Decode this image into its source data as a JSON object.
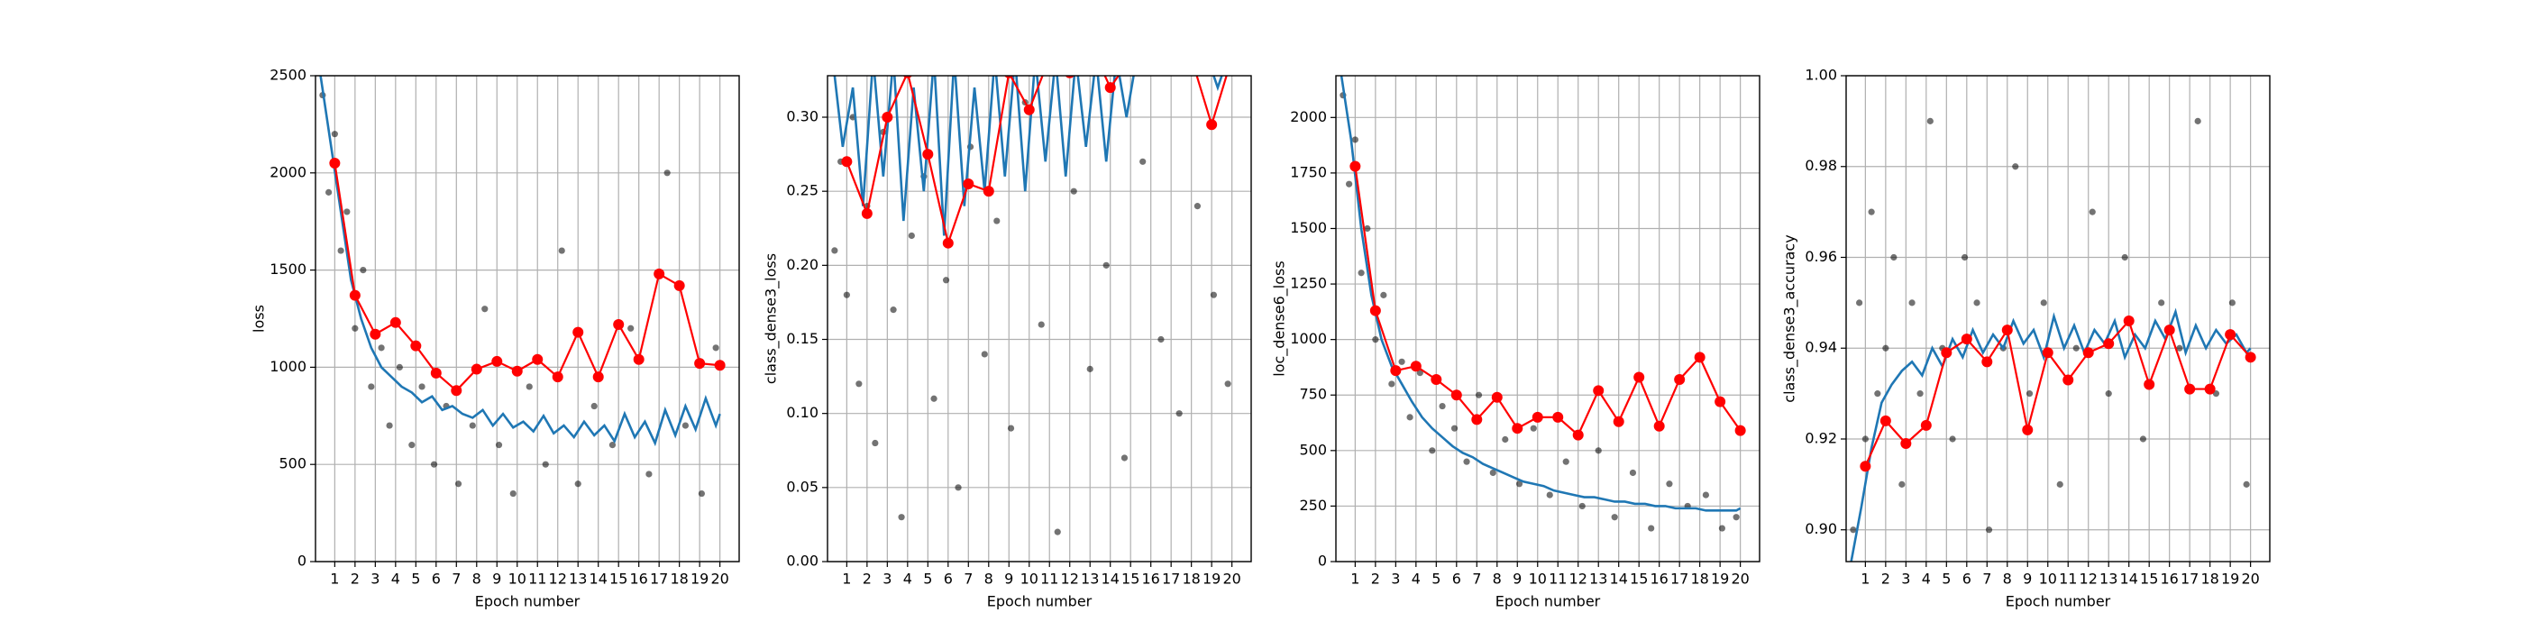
{
  "chart_data": [
    {
      "type": "combo",
      "ylabel": "loss",
      "xlabel": "Epoch number",
      "grid": true,
      "xlim": [
        0.05,
        20.95
      ],
      "xticks": [
        1,
        2,
        3,
        4,
        5,
        6,
        7,
        8,
        9,
        10,
        11,
        12,
        13,
        14,
        15,
        16,
        17,
        18,
        19,
        20
      ],
      "ylim": [
        0,
        2500
      ],
      "yticks": [
        0,
        500,
        1000,
        1500,
        2000,
        2500
      ],
      "series": [
        {
          "type": "scatter",
          "color": "#000000",
          "x": [
            0.4,
            0.7,
            1.0,
            1.3,
            1.6,
            2.0,
            2.4,
            2.8,
            3.3,
            3.7,
            4.2,
            4.8,
            5.3,
            5.9,
            6.5,
            7.1,
            7.8,
            8.4,
            9.1,
            9.8,
            10.6,
            11.4,
            12.2,
            13.0,
            13.8,
            14.7,
            15.6,
            16.5,
            17.4,
            18.3,
            19.1,
            19.8
          ],
          "values": [
            2400,
            1900,
            2200,
            1600,
            1800,
            1200,
            1500,
            900,
            1100,
            700,
            1000,
            600,
            900,
            500,
            800,
            400,
            700,
            1300,
            600,
            350,
            900,
            500,
            1600,
            400,
            800,
            600,
            1200,
            450,
            2000,
            700,
            350,
            1100
          ]
        },
        {
          "type": "line",
          "color": "#1f77b4",
          "x": [
            0.3,
            0.8,
            1.3,
            1.8,
            2.3,
            2.8,
            3.3,
            3.8,
            4.3,
            4.8,
            5.3,
            5.8,
            6.3,
            6.8,
            7.3,
            7.8,
            8.3,
            8.8,
            9.3,
            9.8,
            10.3,
            10.8,
            11.3,
            11.8,
            12.3,
            12.8,
            13.3,
            13.8,
            14.3,
            14.8,
            15.3,
            15.8,
            16.3,
            16.8,
            17.3,
            17.8,
            18.3,
            18.8,
            19.3,
            19.8,
            20.0
          ],
          "values": [
            2500,
            2150,
            1800,
            1450,
            1250,
            1100,
            1000,
            950,
            900,
            870,
            820,
            850,
            780,
            800,
            760,
            740,
            780,
            700,
            760,
            690,
            720,
            670,
            750,
            660,
            700,
            640,
            720,
            650,
            700,
            620,
            760,
            640,
            720,
            610,
            780,
            650,
            800,
            680,
            840,
            700,
            760
          ]
        },
        {
          "type": "marker-line",
          "color": "#ff0000",
          "x": [
            1,
            2,
            3,
            4,
            5,
            6,
            7,
            8,
            9,
            10,
            11,
            12,
            13,
            14,
            15,
            16,
            17,
            18,
            19,
            20
          ],
          "values": [
            2050,
            1370,
            1170,
            1230,
            1110,
            970,
            880,
            990,
            1030,
            980,
            1040,
            950,
            1180,
            950,
            1220,
            1040,
            1480,
            1420,
            1020,
            1010
          ]
        }
      ]
    },
    {
      "type": "combo",
      "ylabel": "class_dense3_loss",
      "xlabel": "Epoch number",
      "grid": true,
      "xlim": [
        0.05,
        20.95
      ],
      "xticks": [
        1,
        2,
        3,
        4,
        5,
        6,
        7,
        8,
        9,
        10,
        11,
        12,
        13,
        14,
        15,
        16,
        17,
        18,
        19,
        20
      ],
      "ylim": [
        0,
        0.328
      ],
      "yticks": [
        {
          "value": 0,
          "label": "0.00"
        },
        {
          "value": 0.05,
          "label": "0.05"
        },
        {
          "value": 0.1,
          "label": "0.10"
        },
        {
          "value": 0.15,
          "label": "0.15"
        },
        {
          "value": 0.2,
          "label": "0.20"
        },
        {
          "value": 0.25,
          "label": "0.25"
        },
        {
          "value": 0.3,
          "label": "0.30"
        }
      ],
      "series": [
        {
          "type": "scatter",
          "color": "#000000",
          "x": [
            0.4,
            0.7,
            1.0,
            1.3,
            1.6,
            2.0,
            2.4,
            2.8,
            3.3,
            3.7,
            4.2,
            4.8,
            5.3,
            5.9,
            6.5,
            7.1,
            7.8,
            8.4,
            9.1,
            9.8,
            10.6,
            11.4,
            12.2,
            13.0,
            13.8,
            14.7,
            15.6,
            16.5,
            17.4,
            18.3,
            19.1,
            19.8
          ],
          "values": [
            0.21,
            0.27,
            0.18,
            0.3,
            0.12,
            0.24,
            0.08,
            0.29,
            0.17,
            0.03,
            0.22,
            0.26,
            0.11,
            0.19,
            0.05,
            0.28,
            0.14,
            0.23,
            0.09,
            0.31,
            0.16,
            0.02,
            0.25,
            0.13,
            0.2,
            0.07,
            0.27,
            0.15,
            0.1,
            0.24,
            0.18,
            0.12
          ]
        },
        {
          "type": "line",
          "color": "#1f77b4",
          "x": [
            0.3,
            0.8,
            1.3,
            1.8,
            2.3,
            2.8,
            3.3,
            3.8,
            4.3,
            4.8,
            5.3,
            5.8,
            6.3,
            6.8,
            7.3,
            7.8,
            8.3,
            8.8,
            9.3,
            9.8,
            10.3,
            10.8,
            11.3,
            11.8,
            12.3,
            12.8,
            13.3,
            13.8,
            14.3,
            14.8,
            15.3,
            15.8,
            16.3,
            16.8,
            17.3,
            17.8,
            18.3,
            18.8,
            19.3,
            19.8,
            20.0
          ],
          "values": [
            0.34,
            0.28,
            0.32,
            0.24,
            0.34,
            0.26,
            0.34,
            0.23,
            0.32,
            0.25,
            0.34,
            0.22,
            0.34,
            0.24,
            0.32,
            0.25,
            0.34,
            0.26,
            0.34,
            0.25,
            0.34,
            0.27,
            0.34,
            0.26,
            0.34,
            0.28,
            0.34,
            0.27,
            0.34,
            0.3,
            0.34,
            0.34,
            0.34,
            0.34,
            0.34,
            0.34,
            0.34,
            0.34,
            0.32,
            0.34,
            0.34
          ]
        },
        {
          "type": "marker-line",
          "color": "#ff0000",
          "x": [
            1,
            2,
            3,
            4,
            5,
            6,
            7,
            8,
            9,
            10,
            11,
            12,
            13,
            14,
            15,
            16,
            17,
            18,
            19,
            20
          ],
          "values": [
            0.27,
            0.235,
            0.3,
            0.33,
            0.275,
            0.215,
            0.255,
            0.25,
            0.33,
            0.305,
            0.34,
            0.33,
            0.35,
            0.32,
            0.34,
            0.34,
            0.34,
            0.34,
            0.295,
            0.34
          ]
        }
      ]
    },
    {
      "type": "combo",
      "ylabel": "loc_dense6_loss",
      "xlabel": "Epoch number",
      "grid": true,
      "xlim": [
        0.05,
        20.95
      ],
      "xticks": [
        1,
        2,
        3,
        4,
        5,
        6,
        7,
        8,
        9,
        10,
        11,
        12,
        13,
        14,
        15,
        16,
        17,
        18,
        19,
        20
      ],
      "ylim": [
        0,
        2188
      ],
      "yticks": [
        0,
        250,
        500,
        750,
        1000,
        1250,
        1500,
        1750,
        2000
      ],
      "series": [
        {
          "type": "scatter",
          "color": "#000000",
          "x": [
            0.4,
            0.7,
            1.0,
            1.3,
            1.6,
            2.0,
            2.4,
            2.8,
            3.3,
            3.7,
            4.2,
            4.8,
            5.3,
            5.9,
            6.5,
            7.1,
            7.8,
            8.4,
            9.1,
            9.8,
            10.6,
            11.4,
            12.2,
            13.0,
            13.8,
            14.7,
            15.6,
            16.5,
            17.4,
            18.3,
            19.1,
            19.8
          ],
          "values": [
            2100,
            1700,
            1900,
            1300,
            1500,
            1000,
            1200,
            800,
            900,
            650,
            850,
            500,
            700,
            600,
            450,
            750,
            400,
            550,
            350,
            600,
            300,
            450,
            250,
            500,
            200,
            400,
            150,
            350,
            250,
            300,
            150,
            200
          ]
        },
        {
          "type": "line",
          "color": "#1f77b4",
          "x": [
            0.3,
            0.8,
            1.3,
            1.8,
            2.3,
            2.8,
            3.3,
            3.8,
            4.3,
            4.8,
            5.3,
            5.8,
            6.3,
            6.8,
            7.3,
            7.8,
            8.3,
            8.8,
            9.3,
            9.8,
            10.3,
            10.8,
            11.3,
            11.8,
            12.3,
            12.8,
            13.3,
            13.8,
            14.3,
            14.8,
            15.3,
            15.8,
            16.3,
            16.8,
            17.3,
            17.8,
            18.3,
            18.8,
            19.3,
            19.8,
            20.0
          ],
          "values": [
            2200,
            1900,
            1500,
            1200,
            1000,
            880,
            800,
            720,
            650,
            600,
            560,
            520,
            490,
            470,
            440,
            420,
            400,
            380,
            360,
            350,
            340,
            320,
            310,
            300,
            290,
            290,
            280,
            270,
            270,
            260,
            260,
            250,
            250,
            240,
            240,
            240,
            230,
            230,
            230,
            230,
            240
          ]
        },
        {
          "type": "marker-line",
          "color": "#ff0000",
          "x": [
            1,
            2,
            3,
            4,
            5,
            6,
            7,
            8,
            9,
            10,
            11,
            12,
            13,
            14,
            15,
            16,
            17,
            18,
            19,
            20
          ],
          "values": [
            1780,
            1130,
            860,
            880,
            820,
            750,
            640,
            740,
            600,
            650,
            650,
            570,
            770,
            630,
            830,
            610,
            820,
            920,
            720,
            590
          ]
        }
      ]
    },
    {
      "type": "combo",
      "ylabel": "class_dense3_accuracy",
      "xlabel": "Epoch number",
      "grid": true,
      "xlim": [
        0.05,
        20.95
      ],
      "xticks": [
        1,
        2,
        3,
        4,
        5,
        6,
        7,
        8,
        9,
        10,
        11,
        12,
        13,
        14,
        15,
        16,
        17,
        18,
        19,
        20
      ],
      "ylim": [
        0.893,
        1.0
      ],
      "yticks": [
        {
          "value": 0.9,
          "label": "0.90"
        },
        {
          "value": 0.92,
          "label": "0.92"
        },
        {
          "value": 0.94,
          "label": "0.94"
        },
        {
          "value": 0.96,
          "label": "0.96"
        },
        {
          "value": 0.98,
          "label": "0.98"
        },
        {
          "value": 1.0,
          "label": "1.00"
        }
      ],
      "series": [
        {
          "type": "scatter",
          "color": "#000000",
          "x": [
            0.4,
            0.7,
            1.0,
            1.3,
            1.6,
            2.0,
            2.4,
            2.8,
            3.3,
            3.7,
            4.2,
            4.8,
            5.3,
            5.9,
            6.5,
            7.1,
            7.8,
            8.4,
            9.1,
            9.8,
            10.6,
            11.4,
            12.2,
            13.0,
            13.8,
            14.7,
            15.6,
            16.5,
            17.4,
            18.3,
            19.1,
            19.8
          ],
          "values": [
            0.9,
            0.95,
            0.92,
            0.97,
            0.93,
            0.94,
            0.96,
            0.91,
            0.95,
            0.93,
            0.99,
            0.94,
            0.92,
            0.96,
            0.95,
            0.9,
            0.94,
            0.98,
            0.93,
            0.95,
            0.91,
            0.94,
            0.97,
            0.93,
            0.96,
            0.92,
            0.95,
            0.94,
            0.99,
            0.93,
            0.95,
            0.91
          ]
        },
        {
          "type": "line",
          "color": "#1f77b4",
          "x": [
            0.3,
            0.8,
            1.3,
            1.8,
            2.3,
            2.8,
            3.3,
            3.8,
            4.3,
            4.8,
            5.3,
            5.8,
            6.3,
            6.8,
            7.3,
            7.8,
            8.3,
            8.8,
            9.3,
            9.8,
            10.3,
            10.8,
            11.3,
            11.8,
            12.3,
            12.8,
            13.3,
            13.8,
            14.3,
            14.8,
            15.3,
            15.8,
            16.3,
            16.8,
            17.3,
            17.8,
            18.3,
            18.8,
            19.3,
            19.8,
            20.0
          ],
          "values": [
            0.893,
            0.905,
            0.918,
            0.928,
            0.932,
            0.935,
            0.937,
            0.934,
            0.94,
            0.936,
            0.942,
            0.938,
            0.944,
            0.939,
            0.943,
            0.94,
            0.946,
            0.941,
            0.944,
            0.938,
            0.947,
            0.94,
            0.945,
            0.939,
            0.944,
            0.941,
            0.946,
            0.938,
            0.943,
            0.94,
            0.946,
            0.942,
            0.948,
            0.939,
            0.945,
            0.94,
            0.944,
            0.941,
            0.943,
            0.939,
            0.94
          ]
        },
        {
          "type": "marker-line",
          "color": "#ff0000",
          "x": [
            1,
            2,
            3,
            4,
            5,
            6,
            7,
            8,
            9,
            10,
            11,
            12,
            13,
            14,
            15,
            16,
            17,
            18,
            19,
            20
          ],
          "values": [
            0.914,
            0.924,
            0.919,
            0.923,
            0.939,
            0.942,
            0.937,
            0.944,
            0.922,
            0.939,
            0.933,
            0.939,
            0.941,
            0.946,
            0.932,
            0.944,
            0.931,
            0.931,
            0.943,
            0.938
          ]
        }
      ]
    }
  ]
}
